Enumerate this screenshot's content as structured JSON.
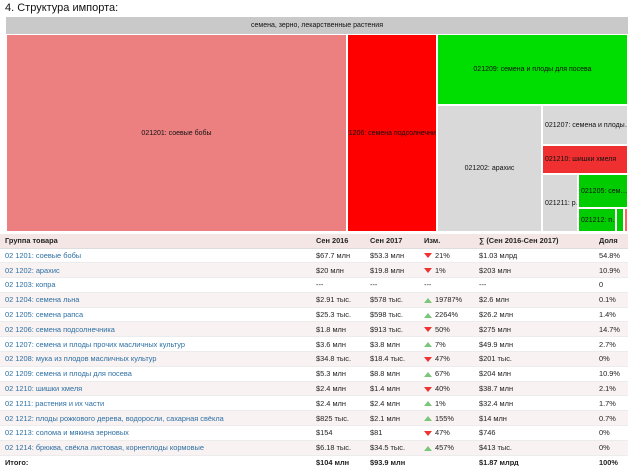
{
  "heading": "4. Структура импорта:",
  "treemap": {
    "header": "семена, зерно, лекарственные растения",
    "cells": [
      {
        "id": "soy",
        "label": "021201: соевые бобы",
        "color": "#ec8080"
      },
      {
        "id": "sunflower",
        "label": "021206: семена подсолнечника",
        "color": "#ff0000"
      },
      {
        "id": "sowing",
        "label": "021209: семена и плоды для посева",
        "color": "#00dd00"
      },
      {
        "id": "peanut",
        "label": "021202: арахис",
        "color": "#d9d9d9"
      },
      {
        "id": "oilseed",
        "label": "021207: семена и плоды…",
        "color": "#d9d9d9"
      },
      {
        "id": "hops",
        "label": "021210: шишки хмеля",
        "color": "#f03030"
      },
      {
        "id": "rapeseed",
        "label": "021205: сем…",
        "color": "#00cc00"
      },
      {
        "id": "plants",
        "label": "021211: р…",
        "color": "#d9d9d9"
      },
      {
        "id": "carob",
        "label": "021212: п…",
        "color": "#00cc00"
      },
      {
        "id": "small1",
        "label": "",
        "color": "#00cc00"
      },
      {
        "id": "small2",
        "label": "",
        "color": "#ff6060"
      }
    ]
  },
  "table": {
    "headers": [
      "Группа товара",
      "Сен 2016",
      "Сен 2017",
      "Изм.",
      "∑ (Сен 2016-Сен 2017)",
      "Доля"
    ],
    "rows": [
      {
        "name": "02 1201: соевые бобы",
        "v2016": "$67.7 млн",
        "v2017": "$53.3 млн",
        "dir": "down",
        "change": "21%",
        "sum": "$1.03 млрд",
        "share": "54.8%"
      },
      {
        "name": "02 1202: арахис",
        "v2016": "$20 млн",
        "v2017": "$19.8 млн",
        "dir": "down",
        "change": "1%",
        "sum": "$203 млн",
        "share": "10.9%"
      },
      {
        "name": "02 1203: копра",
        "v2016": "---",
        "v2017": "---",
        "dir": "none",
        "change": "---",
        "sum": "---",
        "share": "0"
      },
      {
        "name": "02 1204: семена льна",
        "v2016": "$2.91 тыс.",
        "v2017": "$578 тыс.",
        "dir": "up",
        "change": "19787%",
        "sum": "$2.6 млн",
        "share": "0.1%"
      },
      {
        "name": "02 1205: семена рапса",
        "v2016": "$25.3 тыс.",
        "v2017": "$598 тыс.",
        "dir": "up",
        "change": "2264%",
        "sum": "$26.2 млн",
        "share": "1.4%"
      },
      {
        "name": "02 1206: семена подсолнечника",
        "v2016": "$1.8 млн",
        "v2017": "$913 тыс.",
        "dir": "down",
        "change": "50%",
        "sum": "$275 млн",
        "share": "14.7%"
      },
      {
        "name": "02 1207: семена и плоды прочих масличных культур",
        "v2016": "$3.6 млн",
        "v2017": "$3.8 млн",
        "dir": "up",
        "change": "7%",
        "sum": "$49.9 млн",
        "share": "2.7%"
      },
      {
        "name": "02 1208: мука из плодов масличных культур",
        "v2016": "$34.8 тыс.",
        "v2017": "$18.4 тыс.",
        "dir": "down",
        "change": "47%",
        "sum": "$201 тыс.",
        "share": "0%"
      },
      {
        "name": "02 1209: семена и плоды для посева",
        "v2016": "$5.3 млн",
        "v2017": "$8.8 млн",
        "dir": "up",
        "change": "67%",
        "sum": "$204 млн",
        "share": "10.9%"
      },
      {
        "name": "02 1210: шишки хмеля",
        "v2016": "$2.4 млн",
        "v2017": "$1.4 млн",
        "dir": "down",
        "change": "40%",
        "sum": "$38.7 млн",
        "share": "2.1%"
      },
      {
        "name": "02 1211: растения и их части",
        "v2016": "$2.4 млн",
        "v2017": "$2.4 млн",
        "dir": "up",
        "change": "1%",
        "sum": "$32.4 млн",
        "share": "1.7%"
      },
      {
        "name": "02 1212: плоды рожкового дерева, водоросли, сахарная свёкла",
        "v2016": "$825 тыс.",
        "v2017": "$2.1 млн",
        "dir": "up",
        "change": "155%",
        "sum": "$14 млн",
        "share": "0.7%"
      },
      {
        "name": "02 1213: солома и мякина зерновых",
        "v2016": "$154",
        "v2017": "$81",
        "dir": "down",
        "change": "47%",
        "sum": "$746",
        "share": "0%"
      },
      {
        "name": "02 1214: брюква, свёкла листовая, корнеплоды кормовые",
        "v2016": "$6.18 тыс.",
        "v2017": "$34.5 тыс.",
        "dir": "up",
        "change": "457%",
        "sum": "$413 тыс.",
        "share": "0%"
      }
    ],
    "total": {
      "label": "Итого:",
      "v2016": "$104 млн",
      "v2017": "$93.9 млн",
      "change": "",
      "sum": "$1.87 млрд",
      "share": "100%"
    }
  }
}
